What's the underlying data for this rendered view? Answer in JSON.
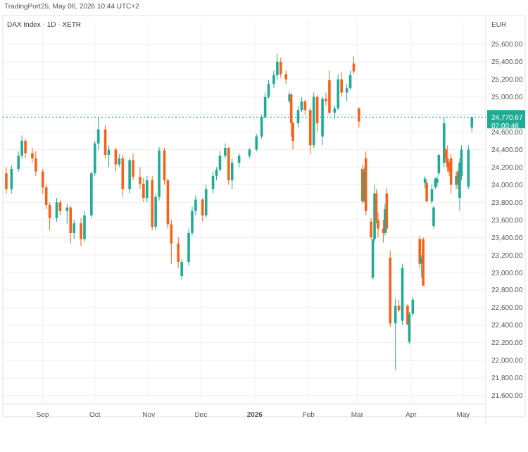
{
  "chart_data": {
    "type": "candlestick",
    "title": "DAX Index · 1D · XETR",
    "annotations": [
      "TradingPort25, May 06, 2026 10:44 UTC+2",
      "EUR",
      "07:00:46"
    ],
    "x": [
      "2025-08-11",
      "2025-08-14",
      "2025-08-18",
      "2025-08-20",
      "2025-08-22",
      "2025-08-26",
      "2025-08-28",
      "2025-09-01",
      "2025-09-03",
      "2025-09-05",
      "2025-09-09",
      "2025-09-11",
      "2025-09-15",
      "2025-09-17",
      "2025-09-19",
      "2025-09-23",
      "2025-09-25",
      "2025-09-29",
      "2025-10-01",
      "2025-10-03",
      "2025-10-07",
      "2025-10-09",
      "2025-10-13",
      "2025-10-15",
      "2025-10-17",
      "2025-10-21",
      "2025-10-23",
      "2025-10-27",
      "2025-10-29",
      "2025-10-31",
      "2025-11-03",
      "2025-11-05",
      "2025-11-07",
      "2025-11-10",
      "2025-11-12",
      "2025-11-14",
      "2025-11-18",
      "2025-11-20",
      "2025-11-24",
      "2025-11-26",
      "2025-11-28",
      "2025-12-02",
      "2025-12-04",
      "2025-12-08",
      "2025-12-10",
      "2025-12-12",
      "2025-12-15",
      "2025-12-17",
      "2025-12-19",
      "2025-12-23",
      "2025-12-29",
      "2026-01-02",
      "2026-01-05",
      "2026-01-07",
      "2026-01-09",
      "2026-01-12",
      "2026-01-14",
      "2026-01-16",
      "2026-01-19",
      "2026-01-21",
      "2026-01-22",
      "2026-01-23",
      "2026-01-26",
      "2026-01-28",
      "2026-01-30",
      "2026-02-02",
      "2026-02-04",
      "2026-02-06",
      "2026-02-09",
      "2026-02-11",
      "2026-02-13",
      "2026-02-16",
      "2026-02-18",
      "2026-02-20",
      "2026-02-23",
      "2026-02-25",
      "2026-02-27",
      "2026-03-02",
      "2026-03-04",
      "2026-03-05",
      "2026-03-06",
      "2026-03-09",
      "2026-03-10",
      "2026-03-11",
      "2026-03-12",
      "2026-03-13",
      "2026-03-16",
      "2026-03-17",
      "2026-03-18",
      "2026-03-20",
      "2026-03-23",
      "2026-03-25",
      "2026-03-27",
      "2026-03-30",
      "2026-03-31",
      "2026-04-02",
      "2026-04-06",
      "2026-04-07",
      "2026-04-08",
      "2026-04-09",
      "2026-04-10",
      "2026-04-13",
      "2026-04-14",
      "2026-04-15",
      "2026-04-16",
      "2026-04-17",
      "2026-04-20",
      "2026-04-21",
      "2026-04-22",
      "2026-04-23",
      "2026-04-24",
      "2026-04-27",
      "2026-04-28",
      "2026-04-29",
      "2026-04-30",
      "2026-05-04",
      "2026-05-06"
    ],
    "ohlc": [
      [
        24130,
        24200,
        23900,
        23950
      ],
      [
        23950,
        24220,
        23900,
        24180
      ],
      [
        24180,
        24380,
        24150,
        24330
      ],
      [
        24330,
        24560,
        24300,
        24500
      ],
      [
        24500,
        24520,
        24300,
        24360
      ],
      [
        24360,
        24420,
        24250,
        24300
      ],
      [
        24300,
        24380,
        24100,
        24150
      ],
      [
        24150,
        24180,
        23900,
        23970
      ],
      [
        23970,
        24000,
        23720,
        23770
      ],
      [
        23770,
        23800,
        23480,
        23620
      ],
      [
        23620,
        23850,
        23580,
        23800
      ],
      [
        23800,
        23830,
        23650,
        23700
      ],
      [
        23700,
        23780,
        23550,
        23740
      ],
      [
        23740,
        23760,
        23330,
        23450
      ],
      [
        23450,
        23600,
        23380,
        23560
      ],
      [
        23560,
        23620,
        23300,
        23380
      ],
      [
        23380,
        23700,
        23350,
        23650
      ],
      [
        23650,
        24150,
        23620,
        24130
      ],
      [
        24130,
        24500,
        24100,
        24470
      ],
      [
        24470,
        24770,
        24400,
        24630
      ],
      [
        24630,
        24680,
        24300,
        24340
      ],
      [
        24340,
        24450,
        24200,
        24400
      ],
      [
        24400,
        24420,
        24150,
        24230
      ],
      [
        24230,
        24350,
        24200,
        24300
      ],
      [
        24300,
        24340,
        23860,
        23950
      ],
      [
        23950,
        24300,
        23900,
        24280
      ],
      [
        24280,
        24350,
        24050,
        24090
      ],
      [
        24090,
        24200,
        23950,
        24010
      ],
      [
        24010,
        24080,
        23800,
        23850
      ],
      [
        23850,
        24100,
        23800,
        24050
      ],
      [
        24050,
        24100,
        23480,
        23520
      ],
      [
        23520,
        23900,
        23480,
        23860
      ],
      [
        23860,
        24430,
        23820,
        24390
      ],
      [
        24390,
        24420,
        24000,
        24050
      ],
      [
        24050,
        24070,
        23500,
        23550
      ],
      [
        23550,
        23600,
        23100,
        23330
      ],
      [
        23330,
        23400,
        23050,
        23120
      ],
      [
        22960,
        23150,
        22920,
        23120
      ],
      [
        23120,
        23500,
        23080,
        23450
      ],
      [
        23450,
        23750,
        23420,
        23700
      ],
      [
        23700,
        23880,
        23650,
        23830
      ],
      [
        23830,
        23850,
        23580,
        23650
      ],
      [
        23650,
        24000,
        23620,
        23950
      ],
      [
        23950,
        24150,
        23900,
        24100
      ],
      [
        24100,
        24200,
        24050,
        24170
      ],
      [
        24170,
        24380,
        24150,
        24330
      ],
      [
        24330,
        24470,
        24300,
        24420
      ],
      [
        24420,
        24430,
        24000,
        24050
      ],
      [
        24050,
        24300,
        23950,
        24250
      ],
      [
        24250,
        24360,
        24200,
        24330
      ],
      [
        24330,
        24420,
        24300,
        24400
      ],
      [
        24400,
        24580,
        24380,
        24550
      ],
      [
        24550,
        24800,
        24520,
        24770
      ],
      [
        24770,
        25050,
        24750,
        25000
      ],
      [
        25000,
        25190,
        24980,
        25150
      ],
      [
        25150,
        25300,
        25100,
        25250
      ],
      [
        25250,
        25490,
        25200,
        25400
      ],
      [
        25400,
        25450,
        25220,
        25260
      ],
      [
        25260,
        25300,
        25150,
        25200
      ],
      [
        24950,
        25060,
        24930,
        25030
      ],
      [
        25030,
        25040,
        24550,
        24700
      ],
      [
        24700,
        24720,
        24400,
        24500
      ],
      [
        24700,
        24900,
        24650,
        24850
      ],
      [
        24850,
        25000,
        24830,
        24950
      ],
      [
        24950,
        24970,
        24800,
        24850
      ],
      [
        24850,
        24880,
        24350,
        24450
      ],
      [
        24450,
        25050,
        24420,
        25000
      ],
      [
        25000,
        25020,
        24600,
        24700
      ],
      [
        24550,
        25000,
        24450,
        24980
      ],
      [
        24980,
        25050,
        24900,
        24950
      ],
      [
        25190,
        25300,
        24800,
        24820
      ],
      [
        24820,
        24900,
        24750,
        24870
      ],
      [
        24870,
        25260,
        24850,
        25200
      ],
      [
        25200,
        25280,
        25000,
        25050
      ],
      [
        25050,
        25150,
        24950,
        25100
      ],
      [
        25100,
        25300,
        25080,
        25250
      ],
      [
        25380,
        25460,
        25260,
        25290
      ],
      [
        24870,
        24880,
        24650,
        24720
      ],
      [
        24180,
        24230,
        23780,
        23810
      ],
      [
        23810,
        24200,
        23800,
        24150
      ],
      [
        24300,
        24380,
        23650,
        23700
      ],
      [
        23580,
        23620,
        23380,
        23400
      ],
      [
        22940,
        23380,
        22920,
        23380
      ],
      [
        23380,
        24000,
        23350,
        23900
      ],
      [
        23900,
        23950,
        23560,
        23600
      ],
      [
        23600,
        23680,
        23400,
        23500
      ],
      [
        23500,
        23600,
        23340,
        23450
      ],
      [
        23450,
        23780,
        23420,
        23720
      ],
      [
        23900,
        23960,
        23450,
        23500
      ],
      [
        23170,
        23250,
        22380,
        22420
      ],
      [
        22420,
        22700,
        21890,
        22620
      ],
      [
        22620,
        22690,
        22550,
        22570
      ],
      [
        22450,
        23100,
        22400,
        23050
      ],
      [
        22620,
        22640,
        22400,
        22410
      ],
      [
        22210,
        22550,
        22180,
        22530
      ],
      [
        22530,
        22720,
        22500,
        22690
      ],
      [
        23380,
        23420,
        23050,
        23100
      ],
      [
        23100,
        23200,
        22940,
        23170
      ],
      [
        23380,
        23400,
        22850,
        22850
      ],
      [
        24020,
        24100,
        23960,
        24070
      ],
      [
        24020,
        24050,
        23800,
        23810
      ],
      [
        23810,
        24000,
        23780,
        23950
      ],
      [
        23530,
        23760,
        23500,
        23740
      ],
      [
        23970,
        24080,
        23950,
        24070
      ],
      [
        24020,
        24100,
        23980,
        24070
      ],
      [
        24130,
        24350,
        24100,
        24340
      ],
      [
        24250,
        24770,
        24200,
        24700
      ],
      [
        24400,
        24420,
        24250,
        24300
      ],
      [
        24300,
        24450,
        24150,
        24200
      ],
      [
        24250,
        24270,
        24100,
        24150
      ],
      [
        24300,
        24350,
        23900,
        24000
      ],
      [
        24000,
        24150,
        23950,
        24100
      ],
      [
        24150,
        24170,
        23950,
        24000
      ],
      [
        23850,
        24300,
        23700,
        24250
      ],
      [
        24100,
        24450,
        24050,
        24400
      ],
      [
        23980,
        24450,
        23950,
        24400
      ],
      [
        24650,
        24770,
        24600,
        24770
      ]
    ],
    "colors": [
      "#f7631b",
      "#22ab94",
      "#22ab94",
      "#22ab94",
      "#f7631b",
      "#f7631b",
      "#f7631b",
      "#f7631b",
      "#f7631b",
      "#f7631b",
      "#22ab94",
      "#f7631b",
      "#22ab94",
      "#f7631b",
      "#22ab94",
      "#f7631b",
      "#22ab94",
      "#22ab94",
      "#22ab94",
      "#22ab94",
      "#f7631b",
      "#22ab94",
      "#f7631b",
      "#22ab94",
      "#f7631b",
      "#22ab94",
      "#f7631b",
      "#f7631b",
      "#f7631b",
      "#22ab94",
      "#f7631b",
      "#22ab94",
      "#22ab94",
      "#f7631b",
      "#f7631b",
      "#f7631b",
      "#f7631b",
      "#22ab94",
      "#22ab94",
      "#22ab94",
      "#22ab94",
      "#f7631b",
      "#22ab94",
      "#22ab94",
      "#22ab94",
      "#22ab94",
      "#22ab94",
      "#f7631b",
      "#22ab94",
      "#22ab94",
      "#22ab94",
      "#22ab94",
      "#22ab94",
      "#22ab94",
      "#22ab94",
      "#22ab94",
      "#22ab94",
      "#f7631b",
      "#f7631b",
      "#22ab94",
      "#f7631b",
      "#f7631b",
      "#22ab94",
      "#22ab94",
      "#f7631b",
      "#f7631b",
      "#22ab94",
      "#f7631b",
      "#22ab94",
      "#f7631b",
      "#f7631b",
      "#22ab94",
      "#22ab94",
      "#f7631b",
      "#22ab94",
      "#22ab94",
      "#f7631b",
      "#f7631b",
      "#f7631b",
      "#22ab94",
      "#f7631b",
      "#f7631b",
      "#22ab94",
      "#22ab94",
      "#f7631b",
      "#f7631b",
      "#f7631b",
      "#22ab94",
      "#f7631b",
      "#f7631b",
      "#22ab94",
      "#f7631b",
      "#22ab94",
      "#f7631b",
      "#22ab94",
      "#22ab94",
      "#f7631b",
      "#22ab94",
      "#f7631b",
      "#22ab94",
      "#f7631b",
      "#22ab94",
      "#22ab94",
      "#22ab94",
      "#22ab94",
      "#22ab94",
      "#22ab94",
      "#f7631b",
      "#f7631b",
      "#f7631b",
      "#f7631b",
      "#22ab94",
      "#f7631b",
      "#22ab94",
      "#22ab94",
      "#22ab94",
      "#22ab94"
    ],
    "xlim": [
      "2025-08-09",
      "2026-05-14"
    ],
    "xticks": [
      {
        "value": "2025-09-01",
        "label": "Sep"
      },
      {
        "value": "2025-10-01",
        "label": "Oct"
      },
      {
        "value": "2025-11-01",
        "label": "Nov"
      },
      {
        "value": "2025-12-01",
        "label": "Dec"
      },
      {
        "value": "2026-01-01",
        "label": "2026"
      },
      {
        "value": "2026-02-01",
        "label": "Feb"
      },
      {
        "value": "2026-03-01",
        "label": "Mar"
      },
      {
        "value": "2026-04-01",
        "label": "Apr"
      },
      {
        "value": "2026-05-01",
        "label": "May"
      }
    ],
    "ylim": [
      21500,
      25880
    ],
    "yticks": [
      {
        "value": 21600,
        "label": "21,600.00"
      },
      {
        "value": 21800,
        "label": "21,800.00"
      },
      {
        "value": 22000,
        "label": "22,000.00"
      },
      {
        "value": 22200,
        "label": "22,200.00"
      },
      {
        "value": 22400,
        "label": "22,400.00"
      },
      {
        "value": 22600,
        "label": "22,600.00"
      },
      {
        "value": 22800,
        "label": "22,800.00"
      },
      {
        "value": 23000,
        "label": "23,000.00"
      },
      {
        "value": 23200,
        "label": "23,200.00"
      },
      {
        "value": 23400,
        "label": "23,400.00"
      },
      {
        "value": 23600,
        "label": "23,600.00"
      },
      {
        "value": 23800,
        "label": "23,800.00"
      },
      {
        "value": 24000,
        "label": "24,000.00"
      },
      {
        "value": 24200,
        "label": "24,200.00"
      },
      {
        "value": 24400,
        "label": "24,400.00"
      },
      {
        "value": 24600,
        "label": "24,600.00"
      },
      {
        "value": 24800,
        "label": null
      },
      {
        "value": 25000,
        "label": "25,000.00"
      },
      {
        "value": 25200,
        "label": "25,200.00"
      },
      {
        "value": 25400,
        "label": "25,400.00"
      },
      {
        "value": 25600,
        "label": "25,600.00"
      }
    ],
    "ref_lines": [
      {
        "axis": "y",
        "value": 24770.67,
        "label": "24,770.67",
        "color": "#22ab94",
        "line_style": "dotted"
      }
    ],
    "grid": true
  }
}
